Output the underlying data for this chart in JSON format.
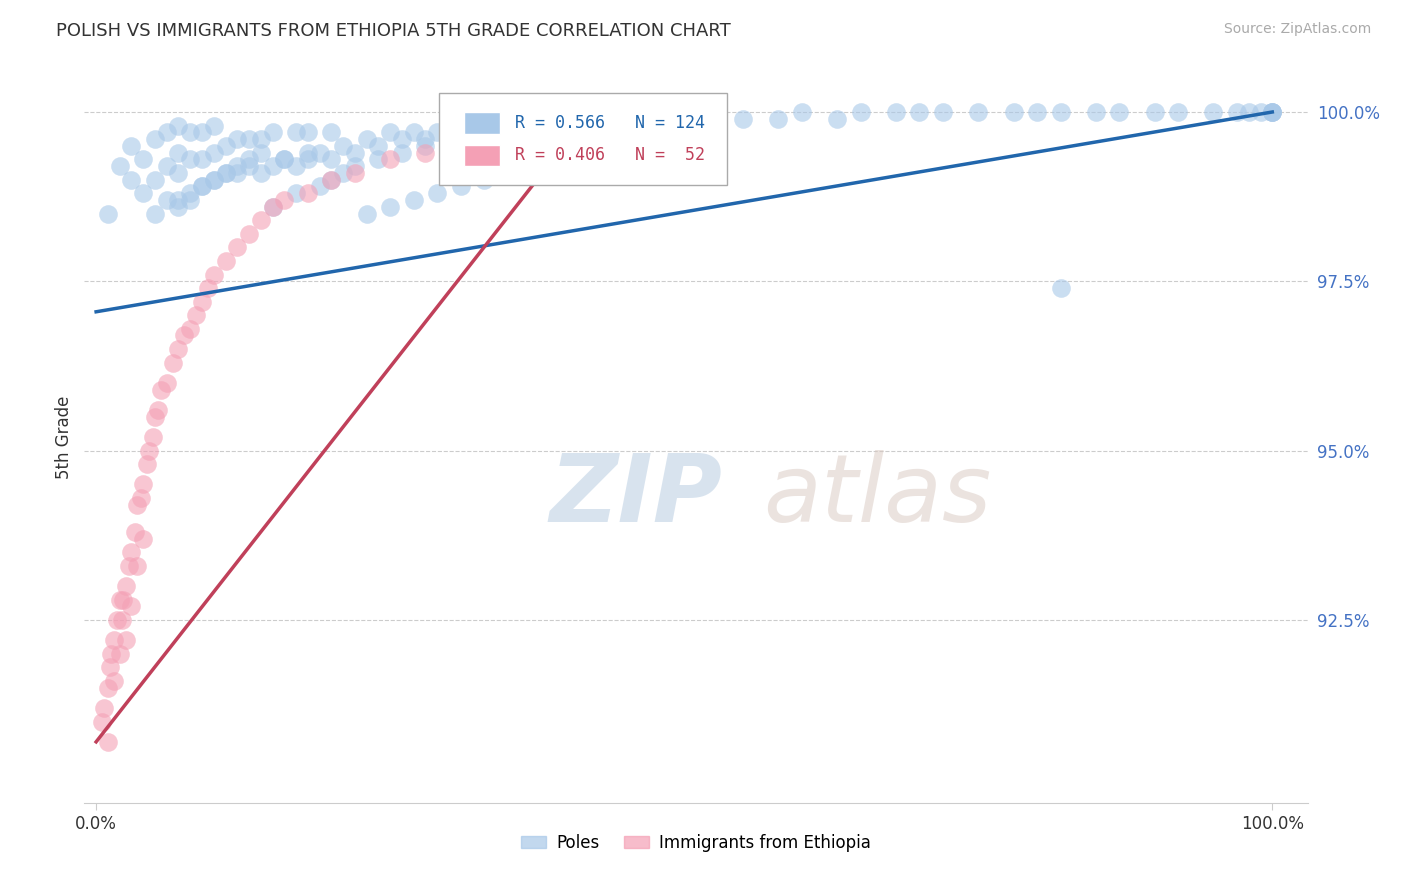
{
  "title": "POLISH VS IMMIGRANTS FROM ETHIOPIA 5TH GRADE CORRELATION CHART",
  "source": "Source: ZipAtlas.com",
  "ylabel": "5th Grade",
  "r_blue": "R = 0.566",
  "n_blue": "N = 124",
  "r_pink": "R = 0.406",
  "n_pink": "N =  52",
  "legend_blue_label": "Poles",
  "legend_pink_label": "Immigrants from Ethiopia",
  "blue_color": "#a8c8e8",
  "pink_color": "#f4a0b5",
  "blue_line_color": "#2166ac",
  "pink_line_color": "#c0405a",
  "watermark_zip": "ZIP",
  "watermark_atlas": "atlas",
  "background_color": "#ffffff",
  "grid_color": "#cccccc",
  "ytick_color": "#4472c4",
  "blue_scatter_x": [
    0.01,
    0.02,
    0.03,
    0.03,
    0.04,
    0.04,
    0.05,
    0.05,
    0.05,
    0.06,
    0.06,
    0.06,
    0.07,
    0.07,
    0.07,
    0.07,
    0.08,
    0.08,
    0.08,
    0.09,
    0.09,
    0.09,
    0.1,
    0.1,
    0.1,
    0.11,
    0.11,
    0.12,
    0.12,
    0.13,
    0.13,
    0.14,
    0.14,
    0.15,
    0.15,
    0.16,
    0.17,
    0.17,
    0.18,
    0.18,
    0.19,
    0.2,
    0.2,
    0.21,
    0.22,
    0.23,
    0.24,
    0.25,
    0.26,
    0.27,
    0.28,
    0.29,
    0.3,
    0.31,
    0.32,
    0.33,
    0.34,
    0.35,
    0.36,
    0.37,
    0.38,
    0.39,
    0.4,
    0.42,
    0.44,
    0.46,
    0.48,
    0.5,
    0.52,
    0.55,
    0.58,
    0.6,
    0.63,
    0.65,
    0.68,
    0.7,
    0.72,
    0.75,
    0.78,
    0.8,
    0.82,
    0.85,
    0.87,
    0.9,
    0.92,
    0.95,
    0.97,
    0.98,
    0.99,
    1.0,
    1.0,
    1.0,
    1.0,
    0.07,
    0.08,
    0.09,
    0.1,
    0.11,
    0.12,
    0.13,
    0.14,
    0.15,
    0.16,
    0.17,
    0.18,
    0.19,
    0.2,
    0.21,
    0.22,
    0.23,
    0.24,
    0.25,
    0.26,
    0.27,
    0.28,
    0.29,
    0.3,
    0.31,
    0.32,
    0.33,
    0.34,
    0.35,
    0.36,
    0.82
  ],
  "blue_scatter_y": [
    0.985,
    0.992,
    0.99,
    0.995,
    0.988,
    0.993,
    0.985,
    0.99,
    0.996,
    0.987,
    0.992,
    0.997,
    0.986,
    0.991,
    0.994,
    0.998,
    0.987,
    0.993,
    0.997,
    0.989,
    0.993,
    0.997,
    0.99,
    0.994,
    0.998,
    0.991,
    0.995,
    0.991,
    0.996,
    0.992,
    0.996,
    0.991,
    0.996,
    0.992,
    0.997,
    0.993,
    0.992,
    0.997,
    0.993,
    0.997,
    0.994,
    0.993,
    0.997,
    0.995,
    0.994,
    0.996,
    0.995,
    0.997,
    0.996,
    0.997,
    0.996,
    0.997,
    0.997,
    0.997,
    0.998,
    0.997,
    0.998,
    0.998,
    0.998,
    0.998,
    0.998,
    0.998,
    0.998,
    0.999,
    0.997,
    0.999,
    0.999,
    0.999,
    0.999,
    0.999,
    0.999,
    1.0,
    0.999,
    1.0,
    1.0,
    1.0,
    1.0,
    1.0,
    1.0,
    1.0,
    1.0,
    1.0,
    1.0,
    1.0,
    1.0,
    1.0,
    1.0,
    1.0,
    1.0,
    1.0,
    1.0,
    1.0,
    1.0,
    0.987,
    0.988,
    0.989,
    0.99,
    0.991,
    0.992,
    0.993,
    0.994,
    0.986,
    0.993,
    0.988,
    0.994,
    0.989,
    0.99,
    0.991,
    0.992,
    0.985,
    0.993,
    0.986,
    0.994,
    0.987,
    0.995,
    0.988,
    0.992,
    0.989,
    0.995,
    0.99,
    0.993,
    0.991,
    0.994,
    0.974
  ],
  "pink_scatter_x": [
    0.005,
    0.007,
    0.01,
    0.01,
    0.012,
    0.013,
    0.015,
    0.015,
    0.018,
    0.02,
    0.02,
    0.022,
    0.023,
    0.025,
    0.025,
    0.028,
    0.03,
    0.03,
    0.033,
    0.035,
    0.035,
    0.038,
    0.04,
    0.04,
    0.043,
    0.045,
    0.048,
    0.05,
    0.053,
    0.055,
    0.06,
    0.065,
    0.07,
    0.075,
    0.08,
    0.085,
    0.09,
    0.095,
    0.1,
    0.11,
    0.12,
    0.13,
    0.14,
    0.15,
    0.16,
    0.18,
    0.2,
    0.22,
    0.25,
    0.28,
    0.32,
    0.38
  ],
  "pink_scatter_y": [
    0.91,
    0.912,
    0.915,
    0.907,
    0.918,
    0.92,
    0.922,
    0.916,
    0.925,
    0.92,
    0.928,
    0.925,
    0.928,
    0.93,
    0.922,
    0.933,
    0.935,
    0.927,
    0.938,
    0.942,
    0.933,
    0.943,
    0.945,
    0.937,
    0.948,
    0.95,
    0.952,
    0.955,
    0.956,
    0.959,
    0.96,
    0.963,
    0.965,
    0.967,
    0.968,
    0.97,
    0.972,
    0.974,
    0.976,
    0.978,
    0.98,
    0.982,
    0.984,
    0.986,
    0.987,
    0.988,
    0.99,
    0.991,
    0.993,
    0.994,
    0.996,
    0.998
  ],
  "blue_line_x": [
    0.0,
    1.0
  ],
  "blue_line_y": [
    0.9705,
    1.0
  ],
  "pink_line_x": [
    0.0,
    0.42
  ],
  "pink_line_y": [
    0.907,
    1.0
  ],
  "xlim": [
    -0.01,
    1.03
  ],
  "ylim": [
    0.898,
    1.006
  ],
  "yticks": [
    0.925,
    0.95,
    0.975,
    1.0
  ],
  "ytick_labels": [
    "92.5%",
    "95.0%",
    "97.5%",
    "100.0%"
  ],
  "xticks": [
    0.0,
    1.0
  ],
  "xtick_labels": [
    "0.0%",
    "100.0%"
  ]
}
